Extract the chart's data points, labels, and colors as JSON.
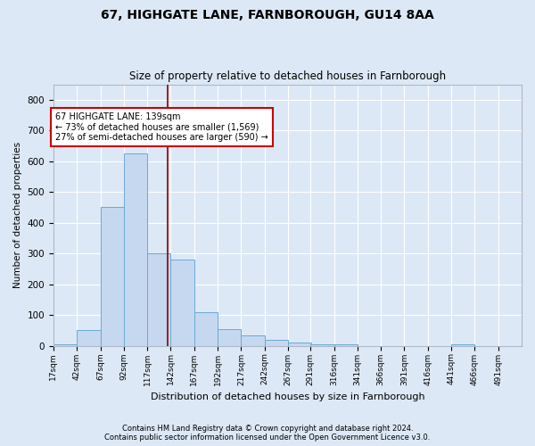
{
  "title": "67, HIGHGATE LANE, FARNBOROUGH, GU14 8AA",
  "subtitle": "Size of property relative to detached houses in Farnborough",
  "xlabel": "Distribution of detached houses by size in Farnborough",
  "ylabel": "Number of detached properties",
  "bar_color": "#c5d8f0",
  "bar_edge_color": "#6aaad4",
  "background_color": "#dce8f5",
  "fig_background_color": "#dce8f5",
  "grid_color": "#ffffff",
  "property_line_color": "#8b0000",
  "annotation_text": "67 HIGHGATE LANE: 139sqm\n← 73% of detached houses are smaller (1,569)\n27% of semi-detached houses are larger (590) →",
  "annotation_box_color": "#ffffff",
  "annotation_box_edge": "#cc0000",
  "bin_edges": [
    17,
    42,
    67,
    92,
    117,
    142,
    167,
    192,
    217,
    242,
    267,
    291,
    316,
    341,
    366,
    391,
    416,
    441,
    466,
    491,
    516
  ],
  "bin_counts": [
    5,
    50,
    450,
    625,
    300,
    280,
    110,
    55,
    35,
    20,
    10,
    5,
    5,
    0,
    0,
    0,
    0,
    5,
    0,
    0
  ],
  "property_value": 139,
  "ylim": [
    0,
    850
  ],
  "yticks": [
    0,
    100,
    200,
    300,
    400,
    500,
    600,
    700,
    800
  ],
  "footnote1": "Contains HM Land Registry data © Crown copyright and database right 2024.",
  "footnote2": "Contains public sector information licensed under the Open Government Licence v3.0."
}
